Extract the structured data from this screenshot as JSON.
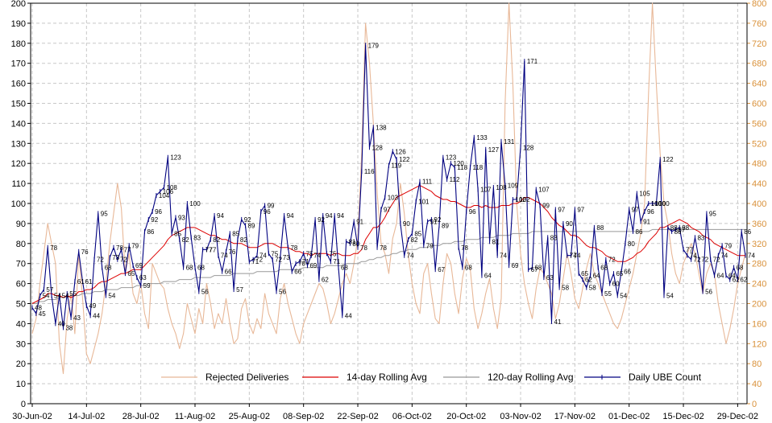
{
  "chart_data": {
    "type": "line",
    "title": "",
    "xlabel": "",
    "ylabel": "",
    "ylim": [
      0,
      200
    ],
    "y2lim": [
      0,
      800
    ],
    "grid": true,
    "legend_position": "bottom-inside",
    "x_tick_labels": [
      "30-Jun-02",
      "14-Jul-02",
      "28-Jul-02",
      "11-Aug-02",
      "25-Aug-02",
      "08-Sep-02",
      "22-Sep-02",
      "06-Oct-02",
      "20-Oct-02",
      "03-Nov-02",
      "17-Nov-02",
      "01-Dec-02",
      "15-Dec-02",
      "29-Dec-02"
    ],
    "y_tick_labels": [
      "0",
      "10",
      "20",
      "30",
      "40",
      "50",
      "60",
      "70",
      "80",
      "90",
      "100",
      "110",
      "120",
      "130",
      "140",
      "150",
      "160",
      "170",
      "180",
      "190",
      "200"
    ],
    "y2_tick_labels": [
      "0",
      "40",
      "80",
      "120",
      "160",
      "200",
      "240",
      "280",
      "320",
      "360",
      "400",
      "440",
      "480",
      "520",
      "560",
      "600",
      "640",
      "680",
      "720",
      "760",
      "800"
    ],
    "colors": {
      "daily": "#000080",
      "rolling14": "#dd0000",
      "rolling120": "#999999",
      "rejected": "#e8b898",
      "grid": "#c8c8c8",
      "y2_tick": "#d9913a"
    },
    "series": [
      {
        "name": "Daily UBE Count",
        "axis": "left",
        "values": [
          48,
          45,
          54,
          57,
          78,
          54,
          40,
          54,
          38,
          55,
          43,
          61,
          76,
          61,
          49,
          44,
          72,
          95,
          68,
          54,
          73,
          78,
          72,
          77,
          65,
          79,
          69,
          63,
          59,
          86,
          92,
          96,
          104,
          106,
          108,
          123,
          85,
          93,
          82,
          68,
          100,
          83,
          68,
          56,
          77,
          77,
          82,
          94,
          74,
          66,
          76,
          85,
          57,
          82,
          92,
          89,
          71,
          72,
          74,
          96,
          99,
          75,
          72,
          56,
          73,
          94,
          78,
          66,
          70,
          71,
          75,
          69,
          74,
          92,
          62,
          94,
          75,
          71,
          94,
          68,
          44,
          81,
          80,
          91,
          78,
          116,
          179,
          128,
          138,
          78,
          97,
          103,
          119,
          126,
          122,
          90,
          74,
          82,
          85,
          101,
          111,
          79,
          91,
          92,
          67,
          89,
          123,
          112,
          120,
          118,
          78,
          68,
          96,
          118,
          133,
          107,
          64,
          127,
          81,
          108,
          74,
          131,
          109,
          69,
          102,
          102,
          128,
          171,
          67,
          68,
          107,
          99,
          63,
          83,
          41,
          97,
          58,
          90,
          74,
          74,
          97,
          65,
          62,
          58,
          64,
          88,
          68,
          55,
          72,
          60,
          65,
          54,
          66,
          80,
          97,
          86,
          105,
          91,
          96,
          100,
          100,
          100,
          122,
          54,
          88,
          86,
          87,
          88,
          77,
          74,
          72,
          83,
          72,
          56,
          95,
          72,
          64,
          74,
          79,
          64,
          62,
          68,
          62,
          86,
          74
        ]
      },
      {
        "name": "14-day Rolling Avg",
        "axis": "left",
        "values": [
          50,
          51,
          52,
          53,
          55,
          55,
          54,
          54,
          53,
          54,
          53,
          54,
          56,
          56,
          57,
          57,
          58,
          60,
          61,
          61,
          62,
          63,
          64,
          65,
          65,
          66,
          67,
          67,
          67,
          69,
          71,
          73,
          75,
          77,
          79,
          82,
          84,
          85,
          86,
          87,
          88,
          88,
          88,
          87,
          86,
          85,
          84,
          84,
          83,
          82,
          82,
          81,
          80,
          80,
          80,
          79,
          78,
          78,
          78,
          79,
          80,
          80,
          80,
          79,
          78,
          78,
          78,
          77,
          76,
          76,
          75,
          75,
          74,
          75,
          75,
          75,
          75,
          74,
          75,
          75,
          74,
          74,
          74,
          75,
          75,
          77,
          82,
          85,
          88,
          88,
          90,
          93,
          97,
          100,
          103,
          104,
          105,
          106,
          107,
          108,
          109,
          108,
          107,
          106,
          104,
          103,
          102,
          102,
          101,
          101,
          100,
          99,
          98,
          98,
          99,
          99,
          98,
          99,
          98,
          98,
          98,
          99,
          99,
          99,
          100,
          100,
          101,
          103,
          103,
          102,
          101,
          100,
          98,
          96,
          93,
          91,
          89,
          88,
          86,
          84,
          84,
          83,
          81,
          79,
          78,
          78,
          77,
          76,
          74,
          73,
          72,
          71,
          71,
          71,
          72,
          73,
          75,
          76,
          78,
          81,
          83,
          85,
          88,
          88,
          89,
          90,
          91,
          92,
          91,
          90,
          88,
          87,
          86,
          84,
          83,
          82,
          80,
          79,
          78,
          77,
          76,
          75,
          74,
          74,
          74
        ]
      },
      {
        "name": "120-day Rolling Avg",
        "axis": "left",
        "values": [
          50,
          50,
          51,
          51,
          52,
          52,
          52,
          53,
          53,
          53,
          54,
          54,
          54,
          55,
          55,
          55,
          56,
          56,
          56,
          57,
          57,
          57,
          57,
          58,
          58,
          58,
          58,
          59,
          59,
          59,
          60,
          60,
          60,
          60,
          61,
          61,
          61,
          61,
          62,
          62,
          62,
          62,
          63,
          63,
          63,
          63,
          63,
          64,
          64,
          64,
          64,
          64,
          65,
          65,
          65,
          65,
          65,
          65,
          66,
          66,
          66,
          66,
          66,
          66,
          67,
          67,
          67,
          67,
          67,
          67,
          68,
          68,
          68,
          68,
          68,
          68,
          69,
          69,
          69,
          69,
          69,
          70,
          70,
          70,
          70,
          71,
          71,
          72,
          72,
          73,
          73,
          74,
          74,
          75,
          75,
          76,
          76,
          77,
          77,
          77,
          78,
          78,
          78,
          79,
          79,
          79,
          80,
          80,
          80,
          81,
          81,
          81,
          82,
          82,
          82,
          82,
          83,
          83,
          83,
          83,
          84,
          84,
          84,
          84,
          85,
          85,
          85,
          85,
          85,
          86,
          86,
          86,
          86,
          86,
          86,
          86,
          86,
          86,
          86,
          86,
          86,
          86,
          86,
          86,
          86,
          86,
          86,
          86,
          86,
          86,
          86,
          86,
          86,
          86,
          86,
          86,
          86,
          86,
          86,
          86,
          87,
          87,
          87,
          87,
          87,
          87,
          87,
          87,
          87,
          87,
          87,
          87,
          87,
          87,
          87,
          87,
          87,
          87,
          87,
          87,
          87,
          87,
          87,
          87,
          87
        ]
      },
      {
        "name": "Rejected Deliveries",
        "axis": "right",
        "values": [
          140,
          170,
          240,
          300,
          360,
          320,
          280,
          120,
          60,
          170,
          220,
          140,
          300,
          210,
          100,
          80,
          110,
          140,
          180,
          240,
          320,
          380,
          440,
          390,
          260,
          300,
          220,
          200,
          240,
          180,
          150,
          280,
          260,
          240,
          230,
          190,
          160,
          140,
          110,
          140,
          200,
          170,
          140,
          190,
          160,
          240,
          200,
          150,
          180,
          160,
          210,
          160,
          120,
          130,
          190,
          210,
          160,
          140,
          170,
          150,
          220,
          180,
          160,
          140,
          210,
          240,
          200,
          170,
          140,
          120,
          160,
          180,
          200,
          220,
          240,
          230,
          200,
          160,
          180,
          210,
          240,
          260,
          240,
          280,
          330,
          500,
          760,
          680,
          560,
          420,
          320,
          300,
          260,
          330,
          360,
          440,
          380,
          300,
          240,
          200,
          180,
          260,
          280,
          220,
          170,
          160,
          240,
          300,
          280,
          220,
          180,
          250,
          290,
          270,
          190,
          150,
          180,
          220,
          250,
          190,
          150,
          210,
          600,
          820,
          640,
          400,
          300,
          240,
          200,
          170,
          230,
          270,
          260,
          240,
          220,
          170,
          200,
          250,
          300,
          260,
          210,
          190,
          230,
          270,
          300,
          260,
          240,
          220,
          200,
          180,
          160,
          150,
          170,
          200,
          230,
          260,
          300,
          340,
          400,
          620,
          820,
          640,
          500,
          400,
          360,
          300,
          260,
          240,
          280,
          300,
          320,
          300,
          260,
          220,
          260,
          280,
          260,
          200,
          160,
          120,
          150,
          190,
          240,
          270,
          300
        ]
      }
    ]
  }
}
